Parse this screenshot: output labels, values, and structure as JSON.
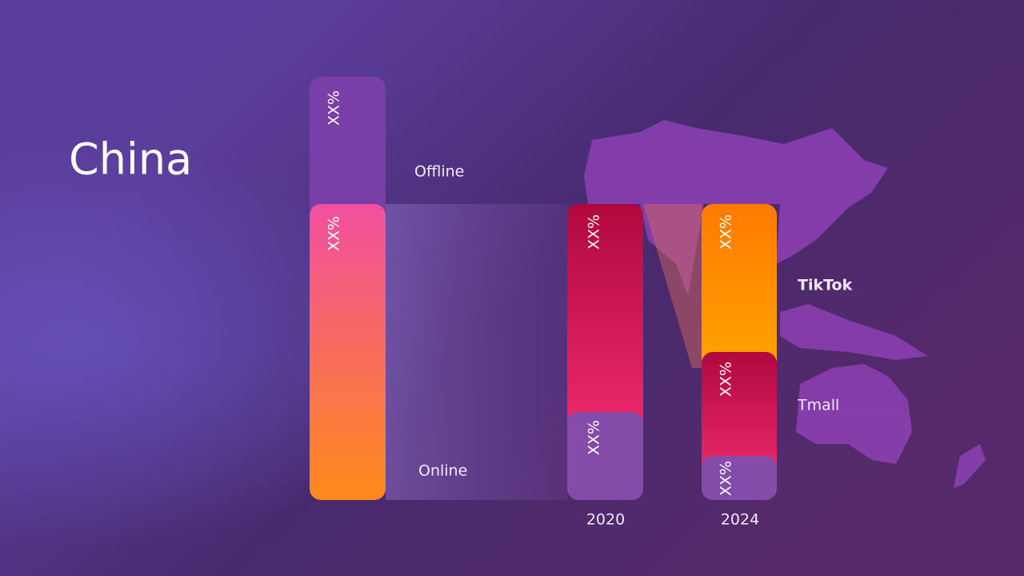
{
  "title": "China",
  "bars": [
    {
      "segments": [
        {
          "label": "XX%"
        },
        {
          "label": "XX%"
        }
      ]
    },
    {
      "year": "2020",
      "segments": [
        {
          "label": "XX%"
        },
        {
          "label": "XX%"
        }
      ]
    },
    {
      "year": "2024",
      "segments": [
        {
          "label": "XX%"
        },
        {
          "label": "XX%"
        },
        {
          "label": "XX%"
        }
      ]
    }
  ],
  "channels": {
    "offline": "Offline",
    "online": "Online",
    "tiktok": "TikTok",
    "tmall": "Tmall"
  }
}
